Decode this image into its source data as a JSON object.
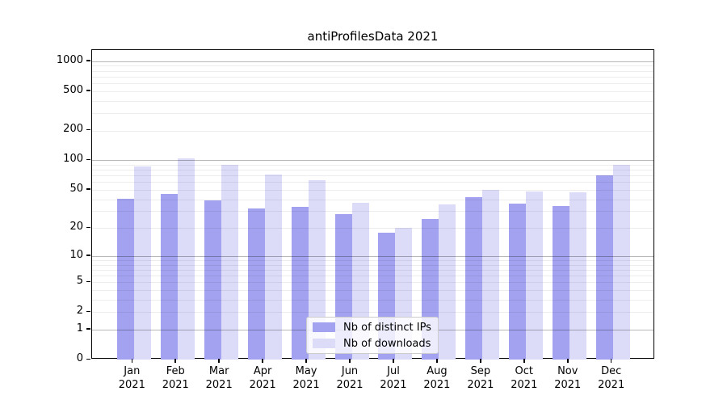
{
  "chart_data": {
    "type": "bar",
    "title": "antiProfilesData 2021",
    "categories": [
      "Jan 2021",
      "Feb 2021",
      "Mar 2021",
      "Apr 2021",
      "May 2021",
      "Jun 2021",
      "Jul 2021",
      "Aug 2021",
      "Sep 2021",
      "Oct 2021",
      "Nov 2021",
      "Dec 2021"
    ],
    "months": [
      "Jan",
      "Feb",
      "Mar",
      "Apr",
      "May",
      "Jun",
      "Jul",
      "Aug",
      "Sep",
      "Oct",
      "Nov",
      "Dec"
    ],
    "year_label": "2021",
    "series": [
      {
        "name": "Nb of distinct IPs",
        "color": "#a2a2f0",
        "values": [
          40,
          45,
          39,
          32,
          33,
          28,
          18,
          25,
          42,
          36,
          34,
          70
        ]
      },
      {
        "name": "Nb of downloads",
        "color": "#dcdcf8",
        "values": [
          86,
          104,
          89,
          71,
          63,
          37,
          20,
          35,
          50,
          48,
          47,
          90
        ]
      }
    ],
    "y_axis": {
      "scale": "log10(value+1)",
      "ticks": [
        0,
        1,
        2,
        5,
        10,
        20,
        50,
        100,
        200,
        500,
        1000
      ],
      "range_min": 0,
      "range_max": 1280,
      "grid": true,
      "major_grid_values": [
        1,
        10,
        100,
        1000
      ]
    },
    "x_axis": {
      "grid": false
    },
    "legend": {
      "position": "bottom-center",
      "entries": [
        "Nb of distinct IPs",
        "Nb of downloads"
      ]
    }
  }
}
